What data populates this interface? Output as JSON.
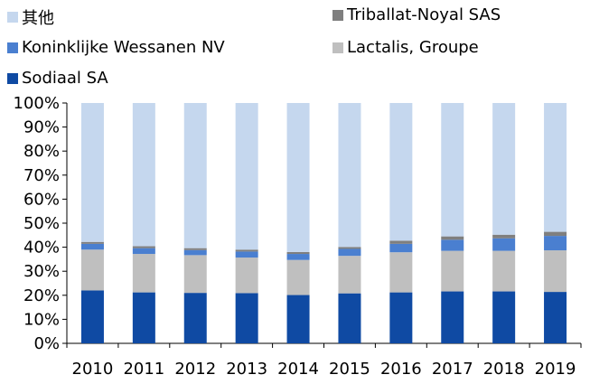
{
  "chart_data": {
    "type": "bar",
    "stacked": true,
    "percent": true,
    "categories": [
      "2010",
      "2011",
      "2012",
      "2013",
      "2014",
      "2015",
      "2016",
      "2017",
      "2018",
      "2019"
    ],
    "series": [
      {
        "name": "Sodiaal SA",
        "color": "#0f4aa3",
        "values": [
          22.0,
          21.2,
          21.0,
          20.9,
          20.1,
          20.8,
          21.2,
          21.6,
          21.6,
          21.4
        ]
      },
      {
        "name": "Lactalis, Groupe",
        "color": "#bfbfbf",
        "values": [
          17.0,
          16.0,
          15.7,
          14.8,
          14.6,
          15.6,
          16.7,
          16.9,
          16.9,
          17.3
        ]
      },
      {
        "name": "Koninklijke Wessanen NV",
        "color": "#4a7fd0",
        "values": [
          2.4,
          2.4,
          2.1,
          2.5,
          2.5,
          2.9,
          3.5,
          4.6,
          5.2,
          6.0
        ]
      },
      {
        "name": "Triballat-Noyal SAS",
        "color": "#7f7f7f",
        "values": [
          0.8,
          0.8,
          0.8,
          0.8,
          0.8,
          0.8,
          1.3,
          1.4,
          1.5,
          1.7
        ]
      },
      {
        "name": "其他",
        "color": "#c5d7ee",
        "values": [
          57.8,
          59.6,
          60.4,
          61.0,
          62.0,
          59.9,
          57.3,
          55.5,
          54.8,
          53.6
        ]
      }
    ],
    "yticks": [
      "0%",
      "10%",
      "20%",
      "30%",
      "40%",
      "50%",
      "60%",
      "70%",
      "80%",
      "90%",
      "100%"
    ],
    "ylim": [
      0,
      100
    ],
    "title": "",
    "xlabel": "",
    "ylabel": "",
    "grid": false,
    "legend_position": "top"
  }
}
